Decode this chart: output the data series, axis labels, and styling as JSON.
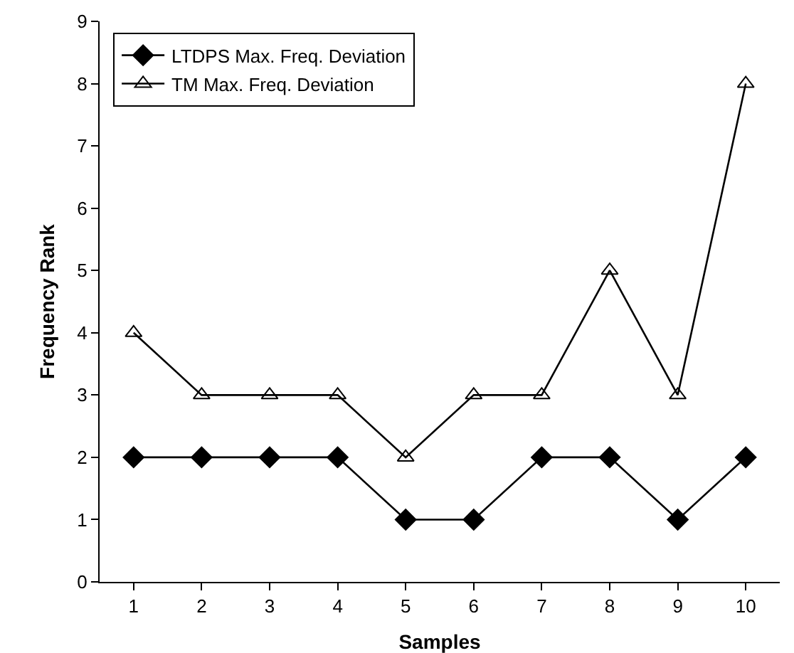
{
  "chart_data": {
    "type": "line",
    "xlabel": "Samples",
    "ylabel": "Frequency Rank",
    "categories": [
      "1",
      "2",
      "3",
      "4",
      "5",
      "6",
      "7",
      "8",
      "9",
      "10"
    ],
    "series": [
      {
        "name": "LTDPS Max. Freq. Deviation",
        "color": "#000000",
        "marker": "diamond",
        "values": [
          2,
          2,
          2,
          2,
          1,
          1,
          2,
          2,
          1,
          2
        ]
      },
      {
        "name": "TM Max. Freq. Deviation",
        "color": "#000000",
        "marker": "triangle",
        "values": [
          4,
          3,
          3,
          3,
          2,
          3,
          3,
          5,
          3,
          8
        ]
      }
    ],
    "ylim": [
      0,
      9
    ],
    "yticks": [
      0,
      1,
      2,
      3,
      4,
      5,
      6,
      7,
      8,
      9
    ],
    "grid": false,
    "legend": "top left",
    "line_style": "solid"
  }
}
